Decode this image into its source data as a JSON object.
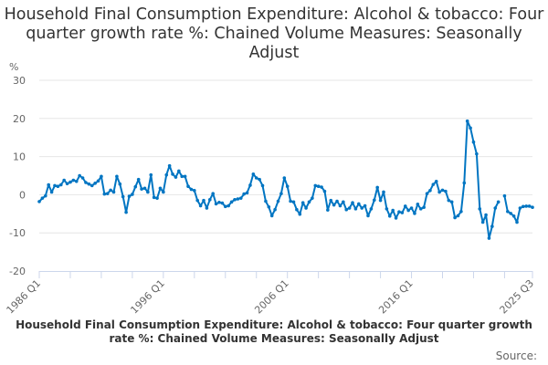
{
  "chart_data": {
    "type": "line",
    "title": "Household Final Consumption Expenditure: Alcohol & tobacco: Four quarter growth rate %: Chained Volume Measures: Seasonally Adjust",
    "ylabel": "%",
    "ylim": [
      -20,
      30
    ],
    "yticks": [
      "30",
      "20",
      "10",
      "0",
      "-10",
      "-20"
    ],
    "x_start": "1986 Q1",
    "x_end": "2025 Q3",
    "xticks": [
      "1986 Q1",
      "1996 Q1",
      "2006 Q1",
      "2016 Q1",
      "2025 Q3"
    ],
    "grid": true,
    "legend_placement": "bottom",
    "color": "#0075c2",
    "series": [
      {
        "name": "Household Final Consumption Expenditure: Alcohol & tobacco: Four quarter growth rate %: Chained Volume Measures: Seasonally Adjust",
        "values": [
          -1.8,
          -0.9,
          -0.3,
          2.6,
          0.7,
          2.4,
          2.2,
          2.6,
          3.8,
          2.9,
          3.3,
          3.8,
          3.5,
          5,
          4.4,
          3.2,
          2.8,
          2.4,
          3,
          3.6,
          4.8,
          0.2,
          0.3,
          1.2,
          0.7,
          4.8,
          2.8,
          -0.5,
          -4.6,
          -0.4,
          0.1,
          2.1,
          4,
          1.5,
          1.7,
          0.7,
          5.2,
          -0.7,
          -0.9,
          1.7,
          0.7,
          5.2,
          7.6,
          5.4,
          4.6,
          6.2,
          4.8,
          4.8,
          2.2,
          1.4,
          1.1,
          -1.5,
          -2.9,
          -1.5,
          -3.5,
          -1.3,
          0.3,
          -2.4,
          -2,
          -2.2,
          -3.1,
          -2.9,
          -1.9,
          -1.3,
          -1.1,
          -0.9,
          0.2,
          0.5,
          2.5,
          5.4,
          4.4,
          4,
          2.4,
          -1.7,
          -3.2,
          -5.5,
          -3.9,
          -1.7,
          0.3,
          4.4,
          2.2,
          -1.7,
          -1.9,
          -3.9,
          -5.1,
          -2.1,
          -3.5,
          -1.9,
          -0.9,
          2.4,
          2.2,
          2,
          0.9,
          -4,
          -1.5,
          -2.7,
          -1.7,
          -2.9,
          -1.9,
          -3.9,
          -3.5,
          -2.1,
          -3.7,
          -2.4,
          -3.5,
          -2.9,
          -5.5,
          -3.7,
          -1.4,
          1.9,
          -1.5,
          0.7,
          -3.7,
          -5.6,
          -4.1,
          -6.1,
          -4.5,
          -4.7,
          -3,
          -4.1,
          -3.5,
          -4.9,
          -2.5,
          -3.7,
          -3.3,
          0.3,
          1.1,
          2.7,
          3.5,
          0.7,
          1.2,
          0.9,
          -1.5,
          -1.9,
          -6,
          -5.5,
          -4.4,
          3.1,
          19.3,
          17.5,
          13.8,
          10.7,
          -3.7,
          -7.2,
          -5.3,
          -11.4,
          -8.3,
          -3.5,
          -1.9,
          null,
          -0.3,
          -4.4,
          -4.9,
          -5.6,
          -7.2,
          -3.5,
          -3.1,
          -3,
          -3,
          -3.3
        ]
      }
    ]
  }
}
